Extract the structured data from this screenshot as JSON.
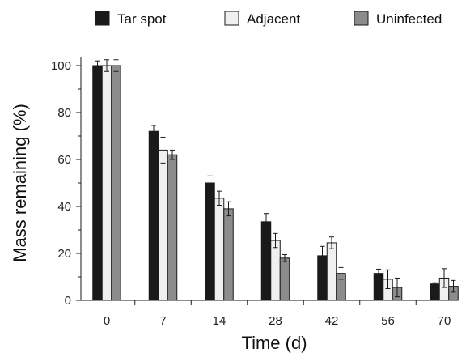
{
  "chart_data": {
    "type": "bar",
    "categories": [
      "0",
      "7",
      "14",
      "28",
      "42",
      "56",
      "70"
    ],
    "series": [
      {
        "name": "Tar spot",
        "color": "#1a1a1a",
        "values": [
          100,
          72,
          50,
          33.5,
          19,
          11.5,
          7
        ],
        "errors": [
          2,
          2.5,
          3,
          3.5,
          4,
          1.8,
          0.5
        ]
      },
      {
        "name": "Adjacent",
        "color": "#f0f0f0",
        "values": [
          100,
          64,
          43.5,
          25.5,
          24.5,
          9,
          9.5
        ],
        "errors": [
          2.5,
          5.5,
          3,
          3,
          2.5,
          4,
          4
        ]
      },
      {
        "name": "Uninfected",
        "color": "#8c8c8c",
        "values": [
          100,
          62,
          39,
          18,
          11.5,
          5.5,
          6
        ],
        "errors": [
          2.5,
          2,
          3,
          1.5,
          2.5,
          4,
          2.5
        ]
      }
    ],
    "xlabel": "Time (d)",
    "ylabel": "Mass remaining (%)",
    "ylim": [
      0,
      100
    ],
    "yticks": [
      0,
      20,
      40,
      60,
      80,
      100
    ],
    "grid": false,
    "legend_position": "top"
  }
}
